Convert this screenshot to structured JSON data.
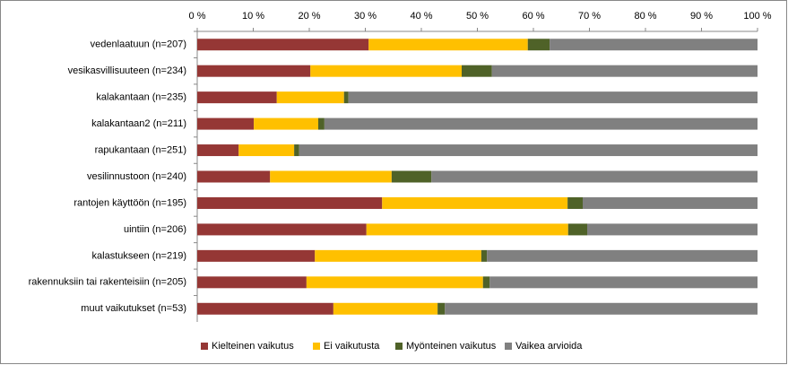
{
  "chart_data": {
    "type": "stacked-bar-horizontal",
    "categories": [
      "vedenlaatuun (n=207)",
      "vesikasvillisuuteen (n=234)",
      "kalakantaan  (n=235)",
      "kalakantaan2  (n=211)",
      "rapukantaan  (n=251)",
      "vesilinnustoon (n=240)",
      "rantojen käyttöön  (n=195)",
      "uintiin  (n=206)",
      "kalastukseen  (n=219)",
      "rakennuksiin tai  rakenteisiin  (n=205)",
      "muut vaikutukset  (n=53)"
    ],
    "series": [
      {
        "name": "Kielteinen vaikutus",
        "color": "#953735",
        "values": [
          30.6,
          20.2,
          14.2,
          10.1,
          7.4,
          13.0,
          33.0,
          30.2,
          21.0,
          19.5,
          24.3
        ]
      },
      {
        "name": "Ei vaikutusta",
        "color": "#ffc000",
        "values": [
          28.4,
          27.0,
          12.0,
          11.5,
          9.9,
          21.7,
          33.1,
          36.0,
          29.7,
          31.5,
          18.6
        ]
      },
      {
        "name": "Myönteinen  vaikutus",
        "color": "#4f6228",
        "values": [
          3.9,
          5.4,
          0.8,
          1.1,
          0.9,
          7.1,
          2.7,
          3.4,
          1.0,
          1.2,
          1.3
        ]
      },
      {
        "name": "Vaikea arvioida",
        "color": "#808080",
        "values": [
          37.1,
          47.4,
          73.0,
          77.3,
          81.8,
          58.2,
          31.2,
          30.4,
          48.3,
          47.8,
          55.8
        ]
      }
    ],
    "xlim": [
      0,
      100
    ],
    "xticks": [
      {
        "value": 0,
        "label": "0 %"
      },
      {
        "value": 10,
        "label": "10 %"
      },
      {
        "value": 20,
        "label": "20 %"
      },
      {
        "value": 30,
        "label": "30 %"
      },
      {
        "value": 40,
        "label": "40 %"
      },
      {
        "value": 50,
        "label": "50 %"
      },
      {
        "value": 60,
        "label": "60 %"
      },
      {
        "value": 70,
        "label": "70 %"
      },
      {
        "value": 80,
        "label": "80 %"
      },
      {
        "value": 90,
        "label": "90 %"
      },
      {
        "value": 100,
        "label": "100 %"
      }
    ],
    "legend": "bottom"
  }
}
